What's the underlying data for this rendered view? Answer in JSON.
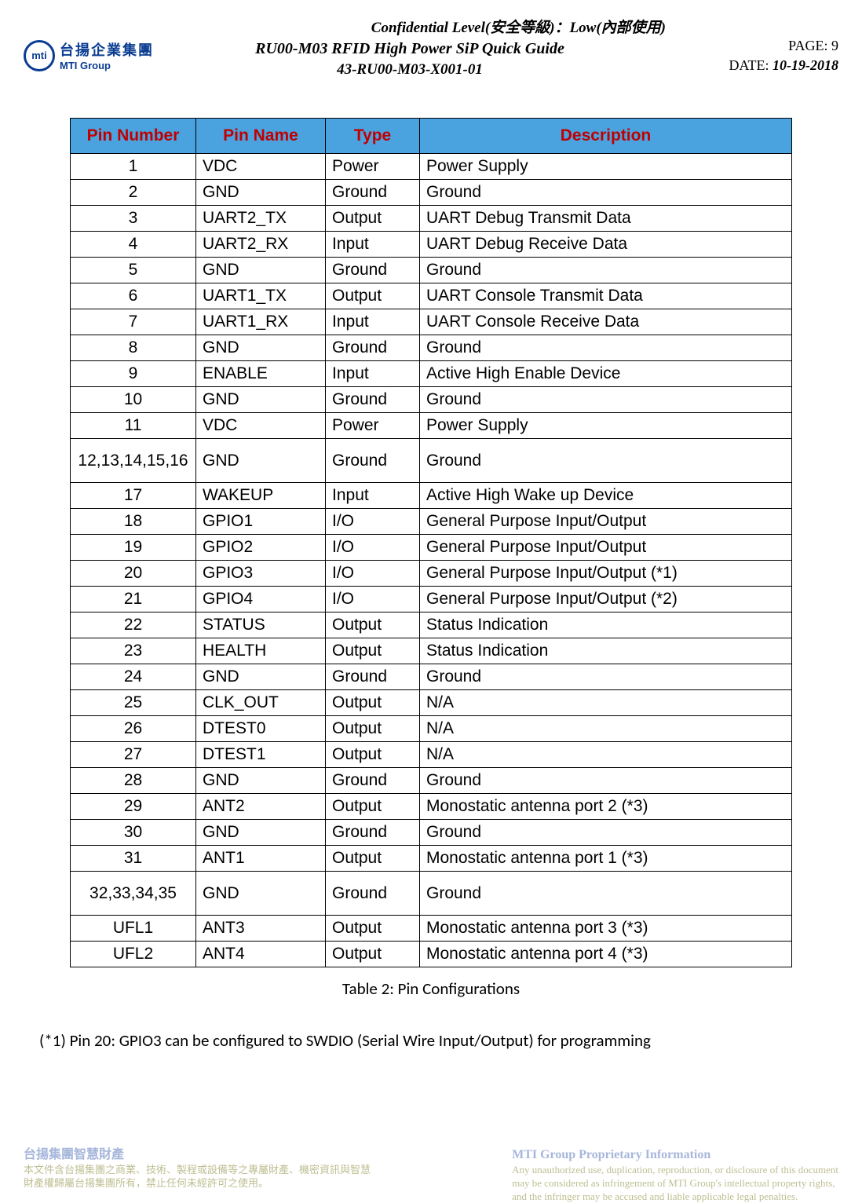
{
  "header": {
    "confidential": "Confidential Level(安全等級)：Low(內部使用)",
    "title": "RU00-M03 RFID High Power SiP Quick Guide",
    "docnum": "43-RU00-M03-X001-01",
    "page_label": "PAGE: 9",
    "date_label": "DATE:  ",
    "date_value": "10-19-2018",
    "logo_cn": "台揚企業集團",
    "logo_en": "MTI Group",
    "logo_mark": "mti"
  },
  "table": {
    "headers": [
      "Pin Number",
      "Pin Name",
      "Type",
      "Description"
    ],
    "rows": [
      {
        "pin": "1",
        "name": "VDC",
        "type": "Power",
        "desc": "Power Supply",
        "tall": false
      },
      {
        "pin": "2",
        "name": "GND",
        "type": "Ground",
        "desc": "Ground",
        "tall": false
      },
      {
        "pin": "3",
        "name": "UART2_TX",
        "type": "Output",
        "desc": "UART Debug Transmit Data",
        "tall": false
      },
      {
        "pin": "4",
        "name": "UART2_RX",
        "type": "Input",
        "desc": "UART Debug Receive Data",
        "tall": false
      },
      {
        "pin": "5",
        "name": "GND",
        "type": "Ground",
        "desc": "Ground",
        "tall": false
      },
      {
        "pin": "6",
        "name": "UART1_TX",
        "type": "Output",
        "desc": "UART Console Transmit Data",
        "tall": false
      },
      {
        "pin": "7",
        "name": "UART1_RX",
        "type": "Input",
        "desc": "UART Console Receive Data",
        "tall": false
      },
      {
        "pin": "8",
        "name": "GND",
        "type": "Ground",
        "desc": "Ground",
        "tall": false
      },
      {
        "pin": "9",
        "name": "ENABLE",
        "type": "Input",
        "desc": "Active High Enable Device",
        "tall": false
      },
      {
        "pin": "10",
        "name": "GND",
        "type": "Ground",
        "desc": "Ground",
        "tall": false
      },
      {
        "pin": "11",
        "name": "VDC",
        "type": "Power",
        "desc": "Power Supply",
        "tall": false
      },
      {
        "pin": "12,13,14,15,16",
        "name": "GND",
        "type": "Ground",
        "desc": "Ground",
        "tall": true
      },
      {
        "pin": "17",
        "name": "WAKEUP",
        "type": "Input",
        "desc": "Active High Wake up Device",
        "tall": false
      },
      {
        "pin": "18",
        "name": "GPIO1",
        "type": "I/O",
        "desc": "General Purpose Input/Output",
        "tall": false
      },
      {
        "pin": "19",
        "name": "GPIO2",
        "type": "I/O",
        "desc": "General Purpose Input/Output",
        "tall": false
      },
      {
        "pin": "20",
        "name": "GPIO3",
        "type": "I/O",
        "desc": "General Purpose Input/Output (*1)",
        "tall": false
      },
      {
        "pin": "21",
        "name": "GPIO4",
        "type": "I/O",
        "desc": "General Purpose Input/Output (*2)",
        "tall": false
      },
      {
        "pin": "22",
        "name": "STATUS",
        "type": "Output",
        "desc": "Status Indication",
        "tall": false
      },
      {
        "pin": "23",
        "name": "HEALTH",
        "type": "Output",
        "desc": "Status Indication",
        "tall": false
      },
      {
        "pin": "24",
        "name": "GND",
        "type": "Ground",
        "desc": "Ground",
        "tall": false
      },
      {
        "pin": "25",
        "name": "CLK_OUT",
        "type": "Output",
        "desc": "N/A",
        "tall": false
      },
      {
        "pin": "26",
        "name": "DTEST0",
        "type": "Output",
        "desc": "N/A",
        "tall": false
      },
      {
        "pin": "27",
        "name": "DTEST1",
        "type": "Output",
        "desc": "N/A",
        "tall": false
      },
      {
        "pin": "28",
        "name": "GND",
        "type": "Ground",
        "desc": "Ground",
        "tall": false
      },
      {
        "pin": "29",
        "name": "ANT2",
        "type": "Output",
        "desc": "Monostatic antenna port 2 (*3)",
        "tall": false
      },
      {
        "pin": "30",
        "name": "GND",
        "type": "Ground",
        "desc": "Ground",
        "tall": false
      },
      {
        "pin": "31",
        "name": "ANT1",
        "type": "Output",
        "desc": "Monostatic antenna port 1 (*3)",
        "tall": false
      },
      {
        "pin": "32,33,34,35",
        "name": "GND",
        "type": "Ground",
        "desc": "Ground",
        "tall": true
      },
      {
        "pin": "UFL1",
        "name": "ANT3",
        "type": "Output",
        "desc": "Monostatic antenna port 3 (*3)",
        "tall": false
      },
      {
        "pin": "UFL2",
        "name": "ANT4",
        "type": "Output",
        "desc": "Monostatic antenna port 4 (*3)",
        "tall": false
      }
    ],
    "header_bg": "#4aa3df",
    "header_color": "#c00000",
    "border_color": "#000000"
  },
  "caption": "Table 2: Pin Configurations",
  "note1": "(*1) Pin 20: GPIO3 can be configured to SWDIO (Serial Wire Input/Output) for programming",
  "footer": {
    "left_title": "台揚集團智慧財產",
    "left_l1": "本文件含台揚集團之商業、技術、製程或設備等之專屬財產、機密資訊與智慧",
    "left_l2": "財產權歸屬台揚集團所有，禁止任何未經許可之使用。",
    "right_title": "MTI Group Proprietary Information",
    "right_l1": "Any unauthorized use, duplication, reproduction, or disclosure of this document",
    "right_l2": "may be considered as infringement of MTI Group's intellectual property rights,",
    "right_l3": "and the infringer may be accused and liable applicable legal penalties."
  }
}
